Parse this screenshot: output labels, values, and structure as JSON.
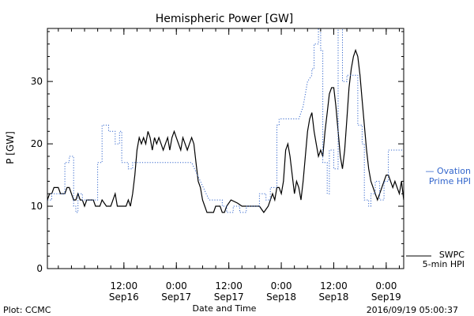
{
  "chart_data": {
    "type": "line",
    "title": "Hemispheric Power [GW]",
    "ylabel": "P [GW]",
    "xlabel": "Date and Time",
    "xlim": [
      "2016-09-15T18:30",
      "2016-09-19T04:00"
    ],
    "ylim": [
      0,
      38.5
    ],
    "yticks": [
      0,
      10,
      20,
      30
    ],
    "xticks": [
      {
        "t": "2016-09-16T12:00",
        "time": "12:00",
        "date": "Sep16"
      },
      {
        "t": "2016-09-17T00:00",
        "time": "0:00",
        "date": "Sep17"
      },
      {
        "t": "2016-09-17T12:00",
        "time": "12:00",
        "date": "Sep17"
      },
      {
        "t": "2016-09-18T00:00",
        "time": "0:00",
        "date": "Sep18"
      },
      {
        "t": "2016-09-18T12:00",
        "time": "12:00",
        "date": "Sep18"
      },
      {
        "t": "2016-09-19T00:00",
        "time": "0:00",
        "date": "Sep19"
      }
    ],
    "grid": false,
    "series": [
      {
        "name": "SWPC 5-min HPI",
        "style": "solid",
        "color": "#000000",
        "points": [
          [
            "2016-09-15T18:30",
            11
          ],
          [
            "2016-09-15T19:00",
            12
          ],
          [
            "2016-09-15T19:30",
            12
          ],
          [
            "2016-09-15T20:00",
            13
          ],
          [
            "2016-09-15T21:00",
            13
          ],
          [
            "2016-09-15T21:30",
            12
          ],
          [
            "2016-09-15T22:30",
            12
          ],
          [
            "2016-09-15T23:00",
            13
          ],
          [
            "2016-09-15T23:30",
            13
          ],
          [
            "2016-09-16T00:00",
            12
          ],
          [
            "2016-09-16T00:30",
            11
          ],
          [
            "2016-09-16T01:00",
            11
          ],
          [
            "2016-09-16T01:30",
            12
          ],
          [
            "2016-09-16T02:00",
            11
          ],
          [
            "2016-09-16T02:30",
            11
          ],
          [
            "2016-09-16T03:00",
            10
          ],
          [
            "2016-09-16T03:30",
            11
          ],
          [
            "2016-09-16T04:00",
            11
          ],
          [
            "2016-09-16T05:00",
            11
          ],
          [
            "2016-09-16T05:30",
            10
          ],
          [
            "2016-09-16T06:30",
            10
          ],
          [
            "2016-09-16T07:00",
            11
          ],
          [
            "2016-09-16T08:00",
            10
          ],
          [
            "2016-09-16T09:00",
            10
          ],
          [
            "2016-09-16T09:30",
            11
          ],
          [
            "2016-09-16T10:00",
            12
          ],
          [
            "2016-09-16T10:30",
            10
          ],
          [
            "2016-09-16T11:30",
            10
          ],
          [
            "2016-09-16T12:30",
            10
          ],
          [
            "2016-09-16T13:00",
            11
          ],
          [
            "2016-09-16T13:30",
            10
          ],
          [
            "2016-09-16T14:00",
            12
          ],
          [
            "2016-09-16T14:30",
            15
          ],
          [
            "2016-09-16T15:00",
            19
          ],
          [
            "2016-09-16T15:30",
            21
          ],
          [
            "2016-09-16T16:00",
            20
          ],
          [
            "2016-09-16T16:30",
            21
          ],
          [
            "2016-09-16T17:00",
            20
          ],
          [
            "2016-09-16T17:30",
            22
          ],
          [
            "2016-09-16T18:00",
            21
          ],
          [
            "2016-09-16T18:30",
            19
          ],
          [
            "2016-09-16T19:00",
            21
          ],
          [
            "2016-09-16T19:30",
            20
          ],
          [
            "2016-09-16T20:00",
            21
          ],
          [
            "2016-09-16T20:30",
            20
          ],
          [
            "2016-09-16T21:00",
            19
          ],
          [
            "2016-09-16T21:30",
            20
          ],
          [
            "2016-09-16T22:00",
            21
          ],
          [
            "2016-09-16T22:30",
            19
          ],
          [
            "2016-09-16T23:00",
            21
          ],
          [
            "2016-09-16T23:30",
            22
          ],
          [
            "2016-09-17T00:00",
            21
          ],
          [
            "2016-09-17T00:30",
            20
          ],
          [
            "2016-09-17T01:00",
            19
          ],
          [
            "2016-09-17T01:30",
            21
          ],
          [
            "2016-09-17T02:00",
            20
          ],
          [
            "2016-09-17T02:30",
            19
          ],
          [
            "2016-09-17T03:00",
            20
          ],
          [
            "2016-09-17T03:30",
            21
          ],
          [
            "2016-09-17T04:00",
            20
          ],
          [
            "2016-09-17T04:30",
            17
          ],
          [
            "2016-09-17T05:00",
            14
          ],
          [
            "2016-09-17T05:30",
            13
          ],
          [
            "2016-09-17T06:00",
            11
          ],
          [
            "2016-09-17T06:30",
            10
          ],
          [
            "2016-09-17T07:00",
            9
          ],
          [
            "2016-09-17T08:30",
            9
          ],
          [
            "2016-09-17T09:00",
            10
          ],
          [
            "2016-09-17T10:00",
            10
          ],
          [
            "2016-09-17T10:30",
            9
          ],
          [
            "2016-09-17T11:00",
            9
          ],
          [
            "2016-09-17T11:30",
            10
          ],
          [
            "2016-09-17T12:30",
            11
          ],
          [
            "2016-09-17T14:00",
            10.5
          ],
          [
            "2016-09-17T15:00",
            10
          ],
          [
            "2016-09-17T16:00",
            10
          ],
          [
            "2016-09-17T17:00",
            10
          ],
          [
            "2016-09-17T18:00",
            10
          ],
          [
            "2016-09-17T19:00",
            10
          ],
          [
            "2016-09-17T20:00",
            9
          ],
          [
            "2016-09-17T21:00",
            10
          ],
          [
            "2016-09-17T22:00",
            12
          ],
          [
            "2016-09-17T22:30",
            11
          ],
          [
            "2016-09-17T23:00",
            13
          ],
          [
            "2016-09-17T23:30",
            13
          ],
          [
            "2016-09-18T00:00",
            12
          ],
          [
            "2016-09-18T00:30",
            14
          ],
          [
            "2016-09-18T01:00",
            19
          ],
          [
            "2016-09-18T01:30",
            20
          ],
          [
            "2016-09-18T02:00",
            18
          ],
          [
            "2016-09-18T02:30",
            15
          ],
          [
            "2016-09-18T03:00",
            12
          ],
          [
            "2016-09-18T03:30",
            14
          ],
          [
            "2016-09-18T04:00",
            13
          ],
          [
            "2016-09-18T04:30",
            11
          ],
          [
            "2016-09-18T05:00",
            14
          ],
          [
            "2016-09-18T05:30",
            18
          ],
          [
            "2016-09-18T06:00",
            22
          ],
          [
            "2016-09-18T06:30",
            24
          ],
          [
            "2016-09-18T07:00",
            25
          ],
          [
            "2016-09-18T07:30",
            22
          ],
          [
            "2016-09-18T08:00",
            20
          ],
          [
            "2016-09-18T08:30",
            18
          ],
          [
            "2016-09-18T09:00",
            19
          ],
          [
            "2016-09-18T09:30",
            18
          ],
          [
            "2016-09-18T10:00",
            22
          ],
          [
            "2016-09-18T10:30",
            25
          ],
          [
            "2016-09-18T11:00",
            28
          ],
          [
            "2016-09-18T11:30",
            29
          ],
          [
            "2016-09-18T12:00",
            29
          ],
          [
            "2016-09-18T12:30",
            26
          ],
          [
            "2016-09-18T13:00",
            22
          ],
          [
            "2016-09-18T13:30",
            18
          ],
          [
            "2016-09-18T14:00",
            16
          ],
          [
            "2016-09-18T14:30",
            19
          ],
          [
            "2016-09-18T15:00",
            24
          ],
          [
            "2016-09-18T15:30",
            29
          ],
          [
            "2016-09-18T16:00",
            32
          ],
          [
            "2016-09-18T16:30",
            34
          ],
          [
            "2016-09-18T17:00",
            35
          ],
          [
            "2016-09-18T17:30",
            34
          ],
          [
            "2016-09-18T18:00",
            31
          ],
          [
            "2016-09-18T18:30",
            27
          ],
          [
            "2016-09-18T19:00",
            23
          ],
          [
            "2016-09-18T19:30",
            19
          ],
          [
            "2016-09-18T20:00",
            16
          ],
          [
            "2016-09-18T20:30",
            14
          ],
          [
            "2016-09-18T21:00",
            13
          ],
          [
            "2016-09-18T21:30",
            12
          ],
          [
            "2016-09-18T22:00",
            11
          ],
          [
            "2016-09-18T22:30",
            12
          ],
          [
            "2016-09-18T23:00",
            13
          ],
          [
            "2016-09-18T23:30",
            14
          ],
          [
            "2016-09-19T00:00",
            15
          ],
          [
            "2016-09-19T00:30",
            15
          ],
          [
            "2016-09-19T01:00",
            14
          ],
          [
            "2016-09-19T01:30",
            13
          ],
          [
            "2016-09-19T02:00",
            14
          ],
          [
            "2016-09-19T02:30",
            13
          ],
          [
            "2016-09-19T03:00",
            12
          ],
          [
            "2016-09-19T03:30",
            14
          ],
          [
            "2016-09-19T04:00",
            11
          ]
        ]
      },
      {
        "name": "Ovation Prime HPI",
        "style": "dotted",
        "color": "#3366cc",
        "points": [
          [
            "2016-09-15T18:30",
            11
          ],
          [
            "2016-09-15T19:30",
            11
          ],
          [
            "2016-09-15T19:30",
            12
          ],
          [
            "2016-09-15T22:30",
            12
          ],
          [
            "2016-09-15T22:30",
            17
          ],
          [
            "2016-09-15T23:30",
            17
          ],
          [
            "2016-09-15T23:30",
            18
          ],
          [
            "2016-09-16T00:30",
            18
          ],
          [
            "2016-09-16T00:30",
            10
          ],
          [
            "2016-09-16T01:00",
            10
          ],
          [
            "2016-09-16T01:00",
            9
          ],
          [
            "2016-09-16T01:30",
            9
          ],
          [
            "2016-09-16T01:30",
            12
          ],
          [
            "2016-09-16T02:30",
            12
          ],
          [
            "2016-09-16T02:30",
            11
          ],
          [
            "2016-09-16T06:00",
            11
          ],
          [
            "2016-09-16T06:00",
            17
          ],
          [
            "2016-09-16T07:00",
            17
          ],
          [
            "2016-09-16T07:00",
            23
          ],
          [
            "2016-09-16T08:30",
            23
          ],
          [
            "2016-09-16T08:30",
            22
          ],
          [
            "2016-09-16T10:00",
            22
          ],
          [
            "2016-09-16T10:00",
            20
          ],
          [
            "2016-09-16T11:00",
            20
          ],
          [
            "2016-09-16T11:00",
            22
          ],
          [
            "2016-09-16T11:30",
            22
          ],
          [
            "2016-09-16T11:30",
            17
          ],
          [
            "2016-09-16T13:00",
            17
          ],
          [
            "2016-09-16T13:00",
            16
          ],
          [
            "2016-09-16T14:00",
            16
          ],
          [
            "2016-09-16T14:00",
            17
          ],
          [
            "2016-09-17T03:30",
            17
          ],
          [
            "2016-09-17T07:30",
            11
          ],
          [
            "2016-09-17T10:30",
            11
          ],
          [
            "2016-09-17T10:30",
            10
          ],
          [
            "2016-09-17T11:30",
            10
          ],
          [
            "2016-09-17T11:30",
            9
          ],
          [
            "2016-09-17T13:00",
            9
          ],
          [
            "2016-09-17T13:00",
            10
          ],
          [
            "2016-09-17T14:30",
            10
          ],
          [
            "2016-09-17T14:30",
            9
          ],
          [
            "2016-09-17T16:00",
            9
          ],
          [
            "2016-09-17T16:00",
            10
          ],
          [
            "2016-09-17T19:00",
            10
          ],
          [
            "2016-09-17T19:00",
            12
          ],
          [
            "2016-09-17T20:30",
            12
          ],
          [
            "2016-09-17T20:30",
            11
          ],
          [
            "2016-09-17T21:30",
            11
          ],
          [
            "2016-09-17T21:30",
            13
          ],
          [
            "2016-09-17T23:00",
            13
          ],
          [
            "2016-09-17T23:00",
            23
          ],
          [
            "2016-09-17T23:30",
            23
          ],
          [
            "2016-09-17T23:30",
            24
          ],
          [
            "2016-09-18T04:00",
            24
          ],
          [
            "2016-09-18T05:00",
            26
          ],
          [
            "2016-09-18T06:00",
            30
          ],
          [
            "2016-09-18T07:00",
            31
          ],
          [
            "2016-09-18T07:00",
            32
          ],
          [
            "2016-09-18T07:30",
            32
          ],
          [
            "2016-09-18T07:30",
            36
          ],
          [
            "2016-09-18T08:30",
            36
          ],
          [
            "2016-09-18T08:30",
            38.5
          ],
          [
            "2016-09-18T09:00",
            38.5
          ],
          [
            "2016-09-18T09:00",
            35
          ],
          [
            "2016-09-18T09:30",
            35
          ],
          [
            "2016-09-18T09:30",
            17
          ],
          [
            "2016-09-18T10:30",
            17
          ],
          [
            "2016-09-18T10:30",
            12
          ],
          [
            "2016-09-18T11:00",
            12
          ],
          [
            "2016-09-18T11:00",
            19
          ],
          [
            "2016-09-18T12:00",
            19
          ],
          [
            "2016-09-18T12:00",
            16
          ],
          [
            "2016-09-18T13:00",
            16
          ],
          [
            "2016-09-18T13:00",
            38.5
          ],
          [
            "2016-09-18T14:00",
            38.5
          ],
          [
            "2016-09-18T14:00",
            30
          ],
          [
            "2016-09-18T15:00",
            30
          ],
          [
            "2016-09-18T15:00",
            31
          ],
          [
            "2016-09-18T17:30",
            31
          ],
          [
            "2016-09-18T17:30",
            23
          ],
          [
            "2016-09-18T18:30",
            23
          ],
          [
            "2016-09-18T18:30",
            20
          ],
          [
            "2016-09-18T19:00",
            20
          ],
          [
            "2016-09-18T19:00",
            11
          ],
          [
            "2016-09-18T20:00",
            11
          ],
          [
            "2016-09-18T20:00",
            10
          ],
          [
            "2016-09-18T20:30",
            10
          ],
          [
            "2016-09-18T20:30",
            12
          ],
          [
            "2016-09-18T21:30",
            12
          ],
          [
            "2016-09-18T21:30",
            14
          ],
          [
            "2016-09-18T22:30",
            14
          ],
          [
            "2016-09-18T22:30",
            11
          ],
          [
            "2016-09-18T23:30",
            11
          ],
          [
            "2016-09-18T23:30",
            14
          ],
          [
            "2016-09-19T00:30",
            14
          ],
          [
            "2016-09-19T00:30",
            19
          ],
          [
            "2016-09-19T04:00",
            19
          ]
        ]
      }
    ],
    "legend": [
      {
        "marker": "— ",
        "line1": "Ovation",
        "line2": "Prime HPI",
        "color": "#3366cc"
      },
      {
        "marker": "",
        "line1": "SWPC",
        "line2": "5-min HPI",
        "color": "#000000"
      }
    ]
  },
  "footer": {
    "left": "Plot: CCMC",
    "right": "2016/09/19 05:00:37"
  }
}
